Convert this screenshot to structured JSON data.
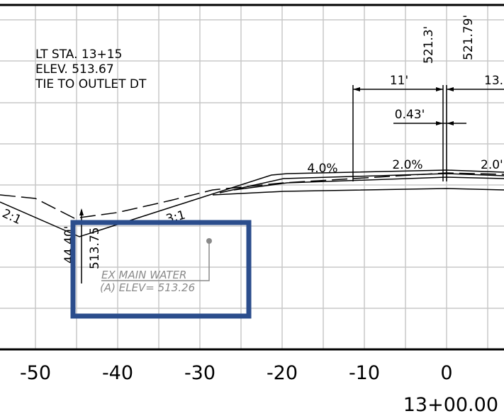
{
  "notes": {
    "station": "LT STA. 13+15",
    "elevation": "ELEV. 513.67",
    "tie": "TIE TO OUTLET DT"
  },
  "elevations": {
    "left": "521.3'",
    "right": "521.79'",
    "ditch": "513.75",
    "offset": "44.40'"
  },
  "dimensions": {
    "width_left": "11'",
    "width_right": "13.",
    "offset": "0.43'"
  },
  "slopes": {
    "shoulder": "4.0%",
    "lane_left": "2.0%",
    "lane_right": "2.0'",
    "fore": "2:1",
    "back": "3:1"
  },
  "utility": {
    "name": "EX MAIN WATER",
    "elevation": "(A) ELEV= 513.26"
  },
  "axis": {
    "ticks": [
      -50,
      -40,
      -30,
      -20,
      -10,
      0
    ],
    "label": "13+00.00"
  }
}
